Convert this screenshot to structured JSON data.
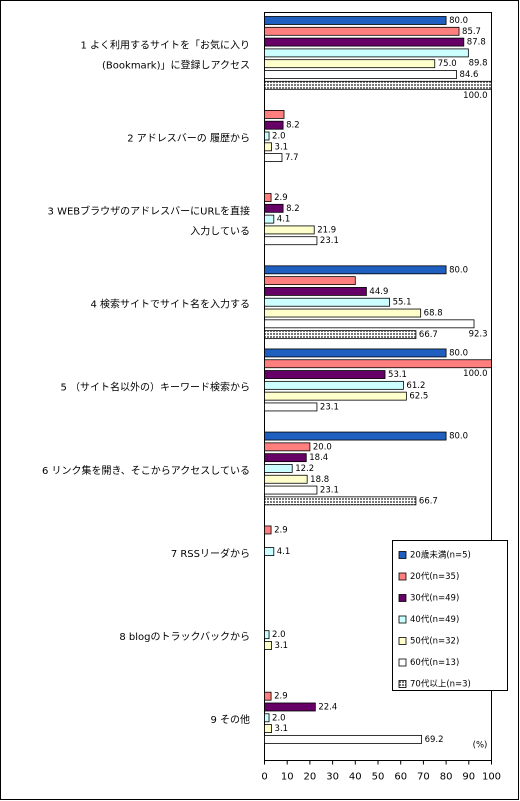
{
  "chart_data": {
    "type": "hbar",
    "categories": [
      [
        "1 よく利用するサイトを「お気に入り",
        "(Bookmark)」に登録しアクセス"
      ],
      [
        "2 アドレスバーの 履歴から"
      ],
      [
        "3 WEBブラウザのアドレスバーにURLを直接",
        "入力している"
      ],
      [
        "4 検索サイトでサイト名を入力する"
      ],
      [
        "5 （サイト名以外の）キーワード検索から"
      ],
      [
        "6 リンク集を開き、そこからアクセスしている"
      ],
      [
        "7 RSSリーダから"
      ],
      [
        "8 blogのトラックバックから"
      ],
      [
        "9 その他"
      ]
    ],
    "series": [
      {
        "name": "20歳未満(n=5)",
        "color": "#1f5fbf",
        "values": [
          80,
          null,
          null,
          80,
          80,
          80,
          null,
          null,
          null
        ],
        "value_labels": [
          "80.0",
          null,
          null,
          "80.0",
          "80.0",
          "80.0",
          null,
          null,
          null
        ]
      },
      {
        "name": "20代(n=35)",
        "color": "#ff7f7f",
        "values": [
          85.7,
          8.6,
          2.9,
          40,
          100,
          20,
          2.9,
          null,
          2.9
        ],
        "value_labels": [
          "85.7",
          null,
          "2.9",
          null,
          "100.0",
          "20.0",
          "2.9",
          null,
          "2.9"
        ]
      },
      {
        "name": "30代(n=49)",
        "color": "#660066",
        "values": [
          87.8,
          8.2,
          8.2,
          44.9,
          53.1,
          18.4,
          null,
          null,
          22.4
        ],
        "value_labels": [
          "87.8",
          "8.2",
          "8.2",
          "44.9",
          "53.1",
          "18.4",
          null,
          null,
          "22.4"
        ]
      },
      {
        "name": "40代(n=49)",
        "color": "#ccffff",
        "values": [
          89.8,
          2,
          4.1,
          55.1,
          61.2,
          12.2,
          4.1,
          2,
          2
        ],
        "value_labels": [
          "89.8",
          "2.0",
          "4.1",
          "55.1",
          "61.2",
          "12.2",
          "4.1",
          "2.0",
          "2.0"
        ]
      },
      {
        "name": "50代(n=32)",
        "color": "#ffffcc",
        "values": [
          75,
          3.1,
          21.9,
          68.8,
          62.5,
          18.8,
          null,
          3.1,
          3.1
        ],
        "value_labels": [
          "75.0",
          "3.1",
          "21.9",
          "68.8",
          "62.5",
          "18.8",
          null,
          "3.1",
          "3.1"
        ]
      },
      {
        "name": "60代(n=13)",
        "color": "#ffffff",
        "values": [
          84.6,
          7.7,
          23.1,
          92.3,
          23.1,
          23.1,
          null,
          null,
          69.2
        ],
        "value_labels": [
          "84.6",
          "7.7",
          "23.1",
          "92.3",
          "23.1",
          "23.1",
          null,
          null,
          "69.2"
        ]
      },
      {
        "name": "70代以上(n=3)",
        "color": "#999999",
        "hatch": true,
        "values": [
          100,
          null,
          null,
          66.7,
          null,
          66.7,
          null,
          null,
          null
        ],
        "value_labels": [
          "100.0",
          null,
          null,
          "66.7",
          null,
          "66.7",
          null,
          null,
          null
        ]
      }
    ],
    "xlim": [
      0,
      100
    ],
    "xticks": [
      0,
      10,
      20,
      30,
      40,
      50,
      60,
      70,
      80,
      90,
      100
    ],
    "x_unit_label": "(%)"
  }
}
